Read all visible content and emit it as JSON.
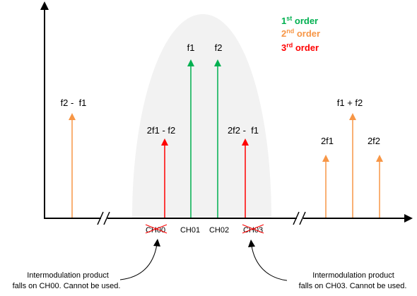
{
  "legend": {
    "first": {
      "num": "1",
      "sup": "st",
      "word": "order",
      "color": "#00b050"
    },
    "second": {
      "num": "2",
      "sup": "nd",
      "word": "order",
      "color": "#f79646"
    },
    "third": {
      "num": "3",
      "sup": "rd",
      "word": "order",
      "color": "#ff0000"
    }
  },
  "labels": {
    "f1": "f1",
    "f2": "f2",
    "f2_minus_f1": "f2 -  f1",
    "two_f1_minus_f2": "2f1 - f2",
    "two_f2_minus_f1": "2f2 -  f1",
    "two_f1": "2f1",
    "f1_plus_f2": "f1 + f2",
    "two_f2": "2f2"
  },
  "channels": {
    "ch00": "CH00",
    "ch01": "CH01",
    "ch02": "CH02",
    "ch03": "CH03"
  },
  "notes": {
    "left": [
      "Intermodulation product",
      "falls on CH00. Cannot be used."
    ],
    "right": [
      "Intermodulation product",
      "falls on CH03. Cannot be used."
    ]
  },
  "colors": {
    "first": "#00b050",
    "second": "#f79646",
    "third": "#ff0000",
    "passband": "#f2f2f2",
    "axis": "#000000"
  }
}
